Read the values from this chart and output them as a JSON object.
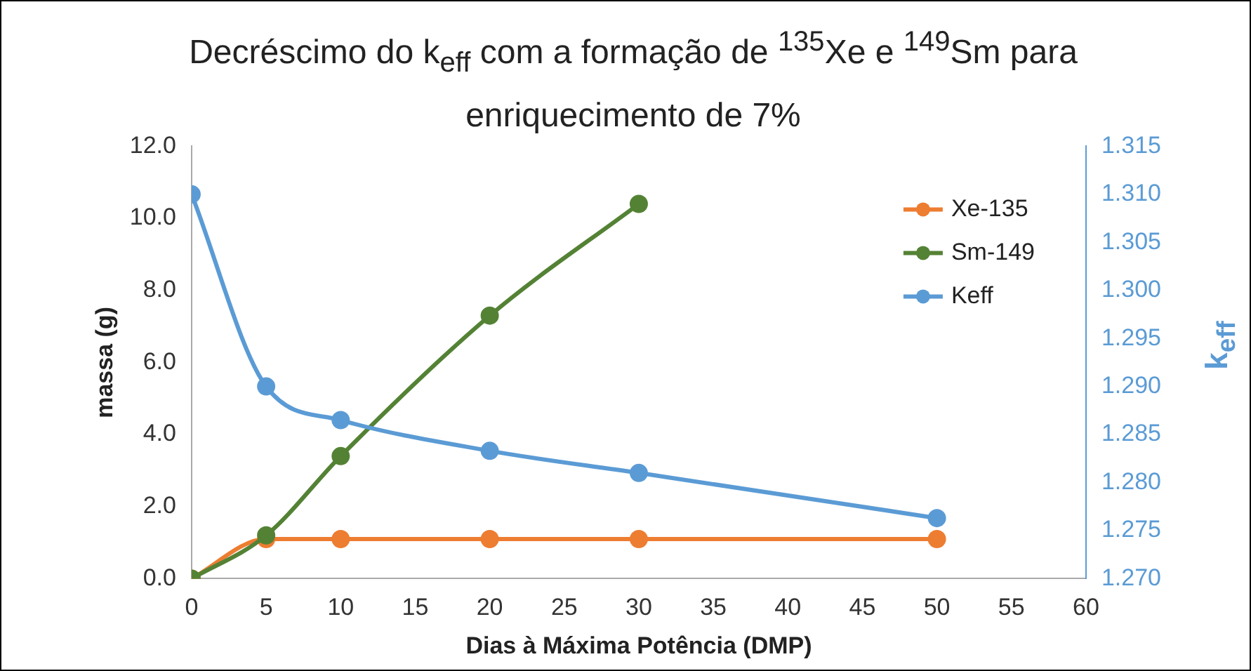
{
  "chart_data": {
    "type": "line",
    "title": "Decréscimo do k$_{eff}$ com a formação de $^{135}$Xe e $^{149}$Sm para enriquecimento de 7%",
    "xlabel": "Dias à Máxima Potência (DMP)",
    "ylabel": "massa (g)",
    "y2label": "k$_{eff}$",
    "xlim": [
      0,
      60
    ],
    "xticks": [
      0,
      5,
      10,
      15,
      20,
      25,
      30,
      35,
      40,
      45,
      50,
      55,
      60
    ],
    "ylim": [
      0,
      12
    ],
    "yticks": [
      {
        "value": 0,
        "label": "0.0"
      },
      {
        "value": 2,
        "label": "2.0"
      },
      {
        "value": 4,
        "label": "4.0"
      },
      {
        "value": 6,
        "label": "6.0"
      },
      {
        "value": 8,
        "label": "8.0"
      },
      {
        "value": 10,
        "label": "10.0"
      },
      {
        "value": 12,
        "label": "12.0"
      }
    ],
    "y2lim": [
      1.27,
      1.315
    ],
    "y2ticks": [
      {
        "value": 1.27,
        "label": "1.270"
      },
      {
        "value": 1.275,
        "label": "1.275"
      },
      {
        "value": 1.28,
        "label": "1.280"
      },
      {
        "value": 1.285,
        "label": "1.285"
      },
      {
        "value": 1.29,
        "label": "1.290"
      },
      {
        "value": 1.295,
        "label": "1.295"
      },
      {
        "value": 1.3,
        "label": "1.300"
      },
      {
        "value": 1.305,
        "label": "1.305"
      },
      {
        "value": 1.31,
        "label": "1.310"
      },
      {
        "value": 1.315,
        "label": "1.315"
      }
    ],
    "grid": false,
    "legend": "top right",
    "marker": "circle",
    "line_style": "solid",
    "series": [
      {
        "name": "Xe-135",
        "color": "#ed7d31",
        "x": [
          0,
          5,
          10,
          20,
          30,
          50
        ],
        "values": [
          0,
          1.1,
          1.1,
          1.1,
          1.1,
          1.1
        ]
      },
      {
        "name": "Sm-149",
        "color": "#548235",
        "x": [
          0,
          5,
          10,
          20,
          30
        ],
        "values": [
          0,
          1.2,
          3.4,
          7.3,
          10.4
        ]
      },
      {
        "name": "Keff",
        "color": "#5b9bd5",
        "axis": "y2",
        "x": [
          0,
          5,
          10,
          20,
          30,
          50
        ],
        "values": [
          1.31,
          1.29,
          1.2865,
          1.2833,
          1.281,
          1.2763
        ]
      }
    ]
  }
}
